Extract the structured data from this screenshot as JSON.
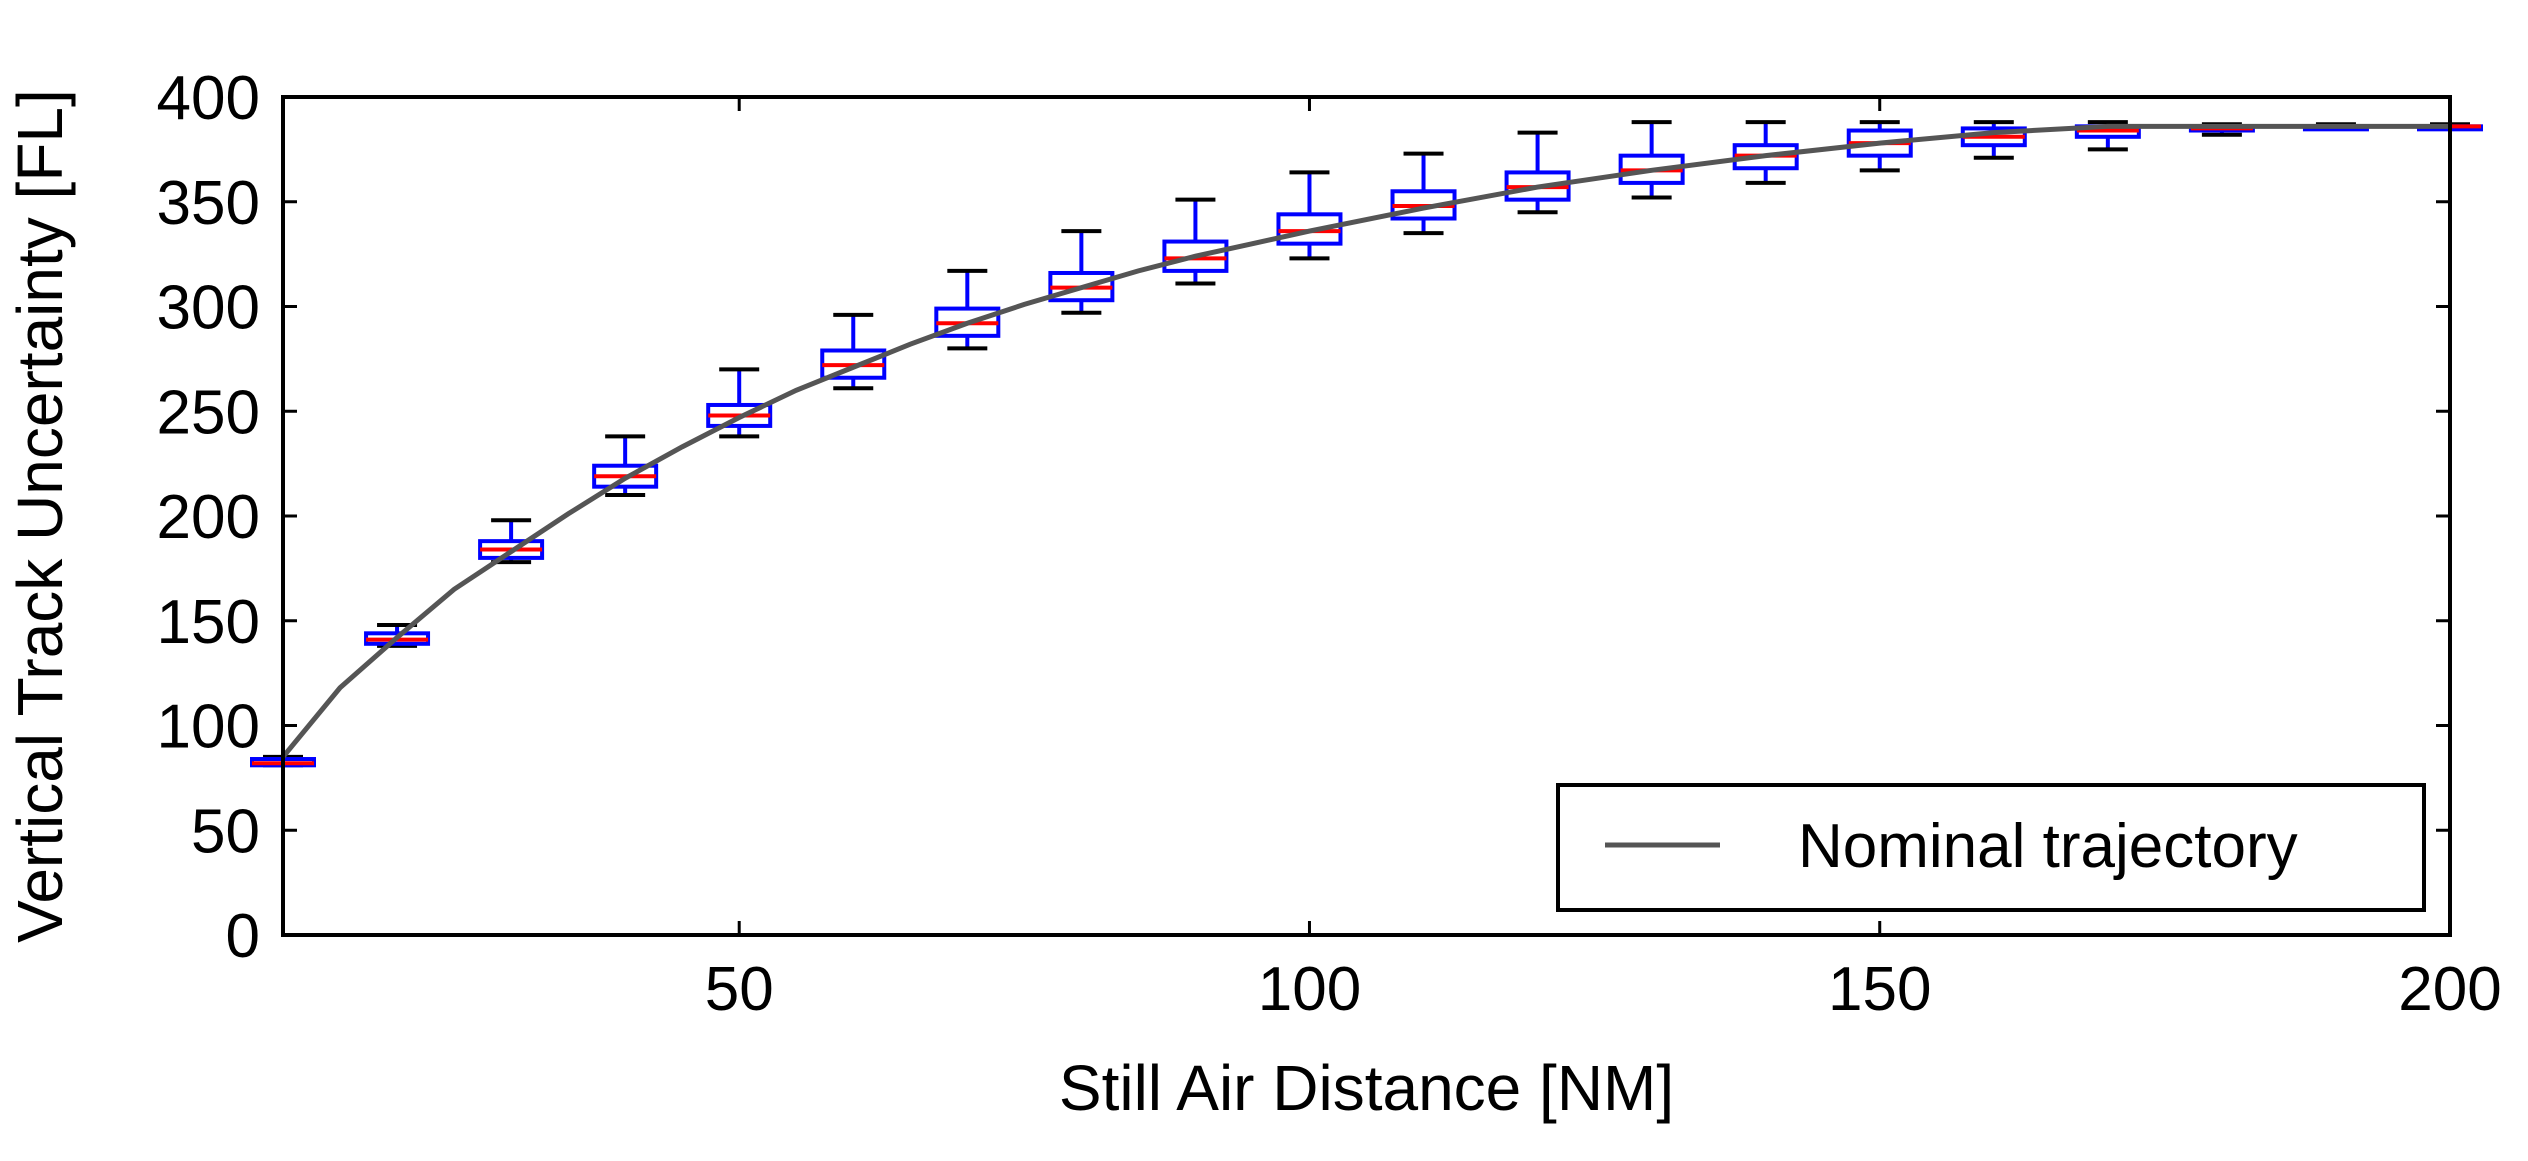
{
  "chart_data": {
    "type": "box",
    "title": "",
    "xlabel": "Still Air Distance [NM]",
    "ylabel": "Vertical Track Uncertainty [FL]",
    "xlim": [
      10,
      200
    ],
    "ylim": [
      0,
      400
    ],
    "xticks": [
      50,
      100,
      150,
      200
    ],
    "yticks": [
      0,
      50,
      100,
      150,
      200,
      250,
      300,
      350,
      400
    ],
    "grid": false,
    "legend": {
      "position": "bottom-right",
      "entries": [
        "Nominal trajectory"
      ]
    },
    "colors": {
      "box": "#0000ff",
      "median": "#ff0000",
      "whisker": "#000000",
      "line": "#555555"
    },
    "nominal_trajectory": {
      "name": "Nominal trajectory",
      "x": [
        10,
        15,
        20,
        25,
        30,
        35,
        40,
        45,
        50,
        55,
        60,
        65,
        70,
        75,
        80,
        85,
        90,
        95,
        100,
        110,
        120,
        130,
        140,
        150,
        160,
        170,
        180,
        190,
        200
      ],
      "y": [
        85,
        118,
        142,
        165,
        183,
        201,
        218,
        233,
        247,
        260,
        271,
        282,
        292,
        301,
        309,
        317,
        324,
        330,
        336,
        347,
        357,
        365,
        372,
        378,
        383,
        386,
        386,
        386,
        386
      ]
    },
    "boxes": [
      {
        "x": 10,
        "whisker_low": 81,
        "q1": 81,
        "median": 82,
        "q3": 84,
        "whisker_high": 85
      },
      {
        "x": 20,
        "whisker_low": 138,
        "q1": 139,
        "median": 141,
        "q3": 144,
        "whisker_high": 148
      },
      {
        "x": 30,
        "whisker_low": 178,
        "q1": 180,
        "median": 184,
        "q3": 188,
        "whisker_high": 198
      },
      {
        "x": 40,
        "whisker_low": 210,
        "q1": 214,
        "median": 219,
        "q3": 224,
        "whisker_high": 238
      },
      {
        "x": 50,
        "whisker_low": 238,
        "q1": 243,
        "median": 248,
        "q3": 253,
        "whisker_high": 270
      },
      {
        "x": 60,
        "whisker_low": 261,
        "q1": 266,
        "median": 272,
        "q3": 279,
        "whisker_high": 296
      },
      {
        "x": 70,
        "whisker_low": 280,
        "q1": 286,
        "median": 292,
        "q3": 299,
        "whisker_high": 317
      },
      {
        "x": 80,
        "whisker_low": 297,
        "q1": 303,
        "median": 309,
        "q3": 316,
        "whisker_high": 336
      },
      {
        "x": 90,
        "whisker_low": 311,
        "q1": 317,
        "median": 323,
        "q3": 331,
        "whisker_high": 351
      },
      {
        "x": 100,
        "whisker_low": 323,
        "q1": 330,
        "median": 336,
        "q3": 344,
        "whisker_high": 364
      },
      {
        "x": 110,
        "whisker_low": 335,
        "q1": 342,
        "median": 348,
        "q3": 355,
        "whisker_high": 373
      },
      {
        "x": 120,
        "whisker_low": 345,
        "q1": 351,
        "median": 357,
        "q3": 364,
        "whisker_high": 383
      },
      {
        "x": 130,
        "whisker_low": 352,
        "q1": 359,
        "median": 365,
        "q3": 372,
        "whisker_high": 388
      },
      {
        "x": 140,
        "whisker_low": 359,
        "q1": 366,
        "median": 372,
        "q3": 377,
        "whisker_high": 388
      },
      {
        "x": 150,
        "whisker_low": 365,
        "q1": 372,
        "median": 378,
        "q3": 384,
        "whisker_high": 388
      },
      {
        "x": 160,
        "whisker_low": 371,
        "q1": 377,
        "median": 381,
        "q3": 385,
        "whisker_high": 388
      },
      {
        "x": 170,
        "whisker_low": 375,
        "q1": 381,
        "median": 384,
        "q3": 386,
        "whisker_high": 388
      },
      {
        "x": 180,
        "whisker_low": 382,
        "q1": 384,
        "median": 385,
        "q3": 386,
        "whisker_high": 387
      },
      {
        "x": 190,
        "whisker_low": 385,
        "q1": 385,
        "median": 386,
        "q3": 386,
        "whisker_high": 387
      },
      {
        "x": 200,
        "whisker_low": 385,
        "q1": 385,
        "median": 386,
        "q3": 386,
        "whisker_high": 387
      }
    ]
  }
}
